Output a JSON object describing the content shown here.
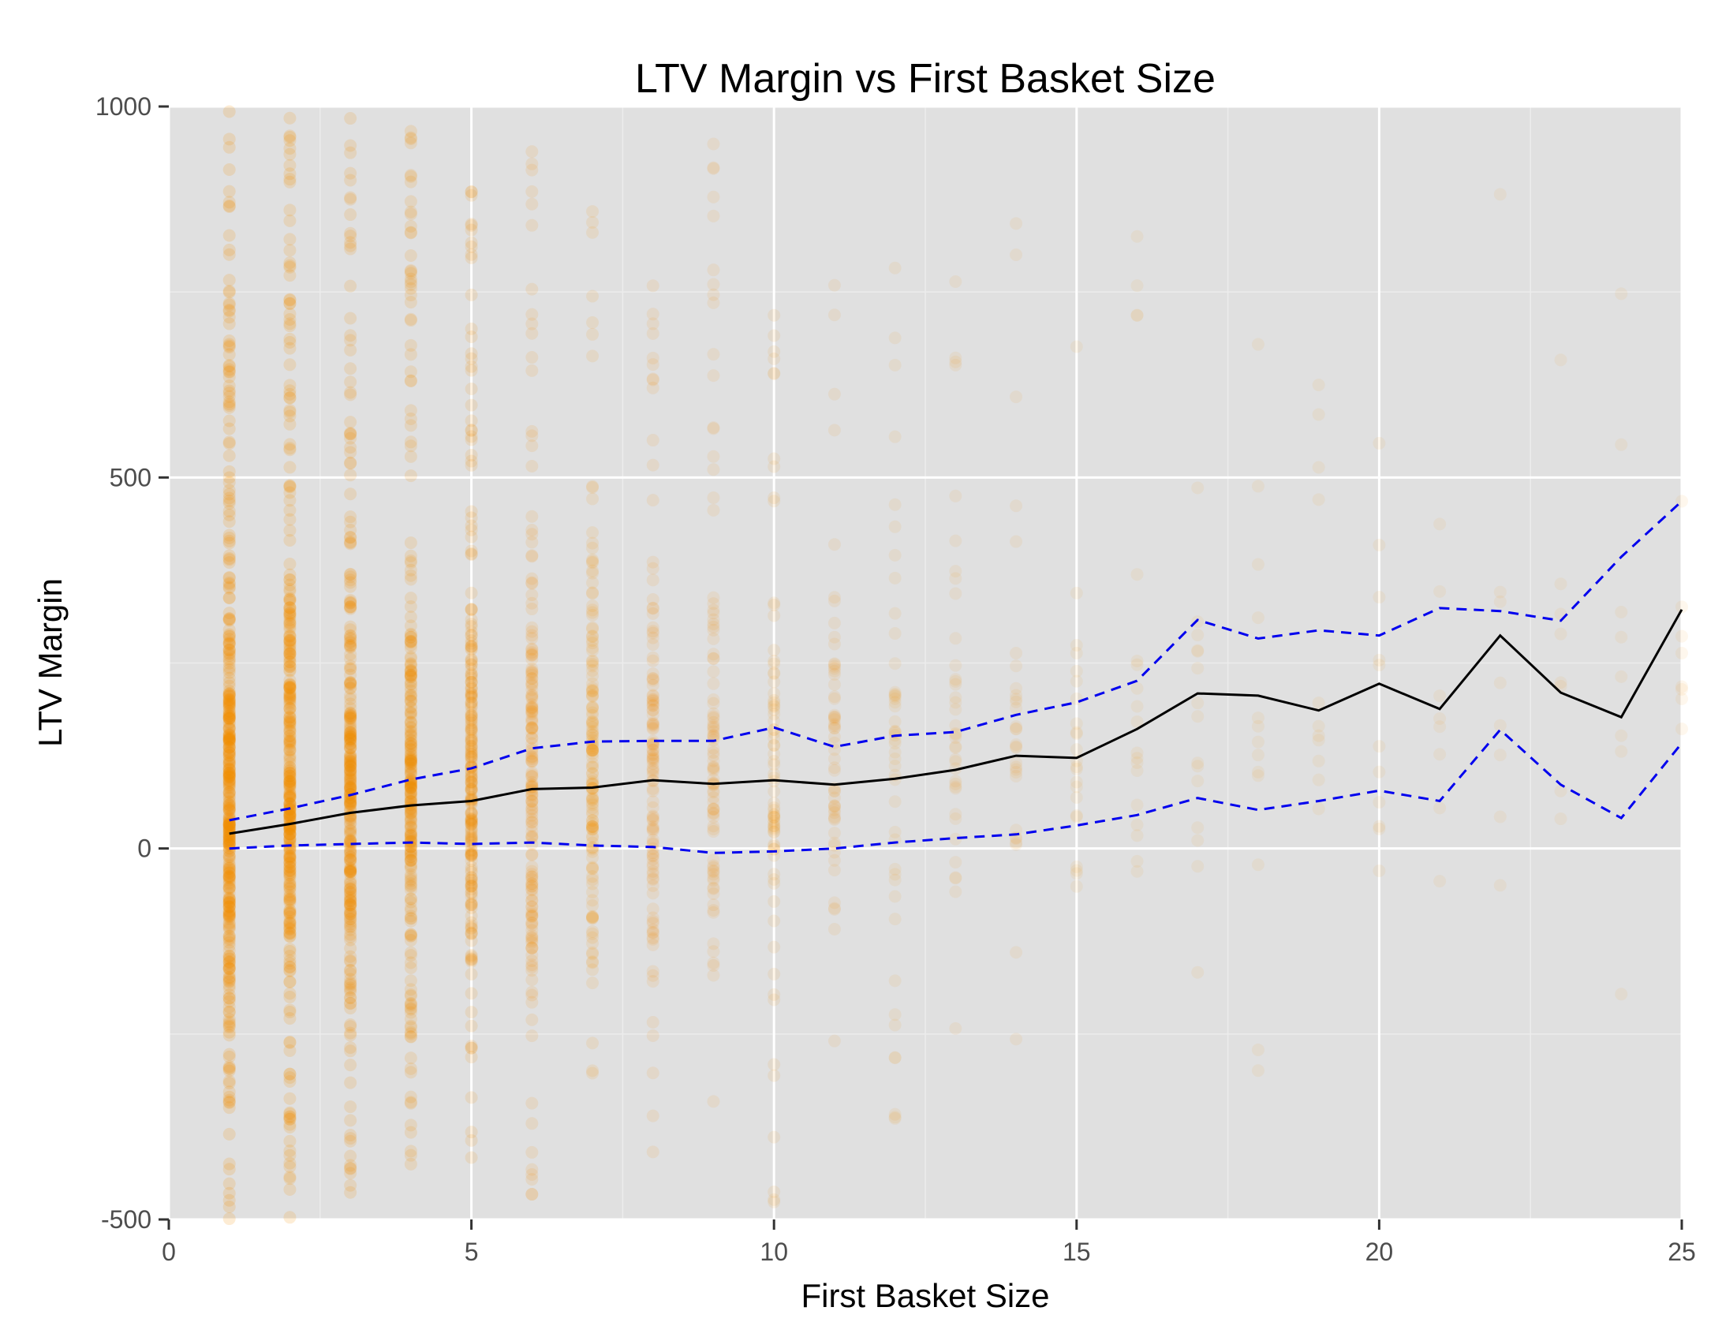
{
  "chart_data": {
    "type": "scatter",
    "title": "LTV Margin vs First Basket Size",
    "xlabel": "First Basket Size",
    "ylabel": "LTV Margin",
    "xlim": [
      0,
      25
    ],
    "ylim": [
      -500,
      1000
    ],
    "x_ticks": [
      "0",
      "5",
      "10",
      "15",
      "20",
      "25"
    ],
    "y_ticks": [
      "-500",
      "0",
      "500",
      "1000"
    ],
    "grid": true,
    "colors": {
      "panel": "#e0e0e0",
      "grid_major": "#ffffff",
      "grid_minor": "#ececec",
      "points": "#f28e00",
      "mean_line": "#000000",
      "band_lines": "#0000ee"
    },
    "scatter_columns": [
      {
        "x": 1,
        "y_range": [
          -500,
          1000
        ],
        "density": 1.0
      },
      {
        "x": 2,
        "y_range": [
          -500,
          1000
        ],
        "density": 0.9
      },
      {
        "x": 3,
        "y_range": [
          -470,
          1000
        ],
        "density": 0.8
      },
      {
        "x": 4,
        "y_range": [
          -450,
          980
        ],
        "density": 0.7
      },
      {
        "x": 5,
        "y_range": [
          -420,
          900
        ],
        "density": 0.6
      },
      {
        "x": 6,
        "y_range": [
          -500,
          960
        ],
        "density": 0.45
      },
      {
        "x": 7,
        "y_range": [
          -320,
          920
        ],
        "density": 0.38
      },
      {
        "x": 8,
        "y_range": [
          -420,
          950
        ],
        "density": 0.3
      },
      {
        "x": 9,
        "y_range": [
          -350,
          960
        ],
        "density": 0.24
      },
      {
        "x": 10,
        "y_range": [
          -480,
          720
        ],
        "density": 0.2
      },
      {
        "x": 11,
        "y_range": [
          -400,
          880
        ],
        "density": 0.15
      },
      {
        "x": 12,
        "y_range": [
          -430,
          810
        ],
        "density": 0.12
      },
      {
        "x": 13,
        "y_range": [
          -300,
          830
        ],
        "density": 0.1
      },
      {
        "x": 14,
        "y_range": [
          -330,
          900
        ],
        "density": 0.08
      },
      {
        "x": 15,
        "y_range": [
          -160,
          760
        ],
        "density": 0.06
      },
      {
        "x": 16,
        "y_range": [
          -240,
          970
        ],
        "density": 0.05
      },
      {
        "x": 17,
        "y_range": [
          -180,
          520
        ],
        "density": 0.04
      },
      {
        "x": 18,
        "y_range": [
          -400,
          920
        ],
        "density": 0.035
      },
      {
        "x": 19,
        "y_range": [
          -200,
          700
        ],
        "density": 0.03
      },
      {
        "x": 20,
        "y_range": [
          -100,
          900
        ],
        "density": 0.028
      },
      {
        "x": 21,
        "y_range": [
          -130,
          650
        ],
        "density": 0.022
      },
      {
        "x": 22,
        "y_range": [
          -100,
          980
        ],
        "density": 0.02
      },
      {
        "x": 23,
        "y_range": [
          40,
          1000
        ],
        "density": 0.015
      },
      {
        "x": 24,
        "y_range": [
          -420,
          930
        ],
        "density": 0.012
      },
      {
        "x": 25,
        "y_range": [
          -50,
          600
        ],
        "density": 0.01
      }
    ],
    "series": [
      {
        "x": [
          1,
          2,
          3,
          4,
          5,
          6,
          7,
          8,
          9,
          10,
          11,
          12,
          13,
          14,
          15,
          16,
          17,
          18,
          19,
          20,
          21,
          22,
          23,
          24,
          25
        ],
        "values": [
          20,
          33,
          48,
          58,
          64,
          80,
          82,
          92,
          87,
          92,
          86,
          94,
          106,
          125,
          122,
          161,
          209,
          206,
          186,
          222,
          188,
          287,
          210,
          177,
          322
        ],
        "style": "solid"
      },
      {
        "x": [
          1,
          2,
          3,
          4,
          5,
          6,
          7,
          8,
          9,
          10,
          11,
          12,
          13,
          14,
          15,
          16,
          17,
          18,
          19,
          20,
          21,
          22,
          23,
          24,
          25
        ],
        "values": [
          38,
          54,
          72,
          93,
          108,
          135,
          144,
          145,
          145,
          163,
          137,
          152,
          157,
          180,
          197,
          226,
          308,
          283,
          294,
          287,
          324,
          320,
          307,
          393,
          468
        ],
        "style": "dashed"
      },
      {
        "x": [
          1,
          2,
          3,
          4,
          5,
          6,
          7,
          8,
          9,
          10,
          11,
          12,
          13,
          14,
          15,
          16,
          17,
          18,
          19,
          20,
          21,
          22,
          23,
          24,
          25
        ],
        "values": [
          0,
          4,
          6,
          8,
          6,
          8,
          4,
          2,
          -6,
          -4,
          0,
          8,
          14,
          19,
          31,
          45,
          68,
          52,
          64,
          78,
          64,
          160,
          86,
          41,
          142
        ],
        "style": "dashed"
      }
    ]
  }
}
